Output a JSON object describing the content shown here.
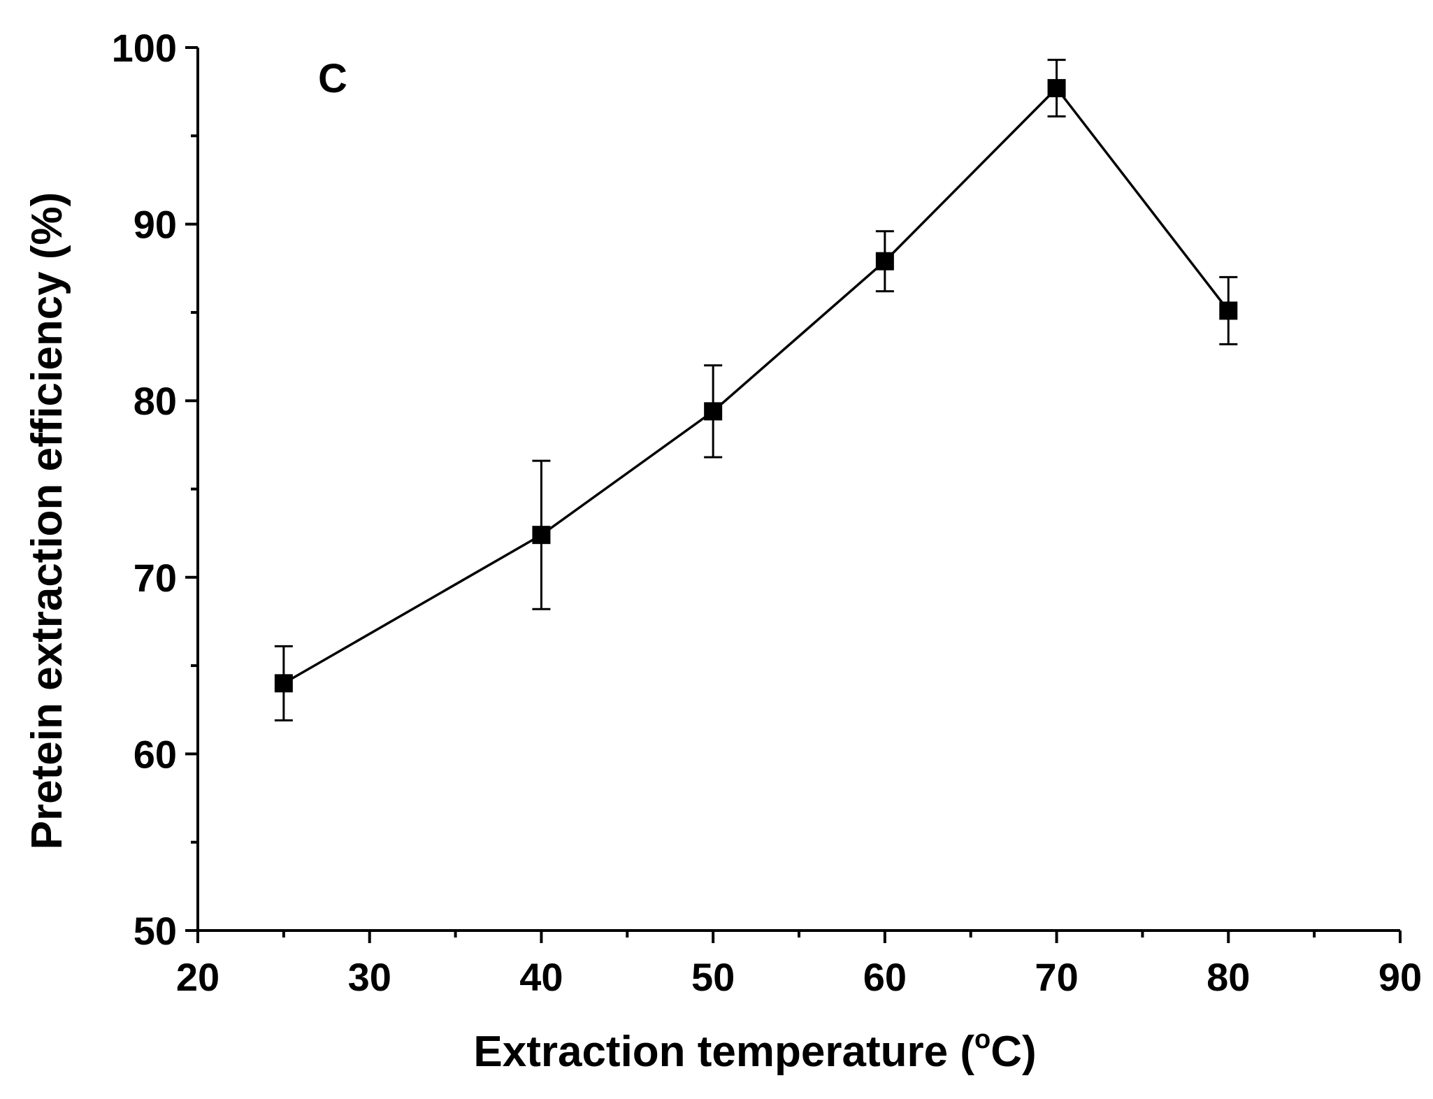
{
  "chart_data": {
    "type": "line",
    "title": "",
    "panel_label": "C",
    "xlabel": "Extraction temperature (",
    "xlabel_unit_superscript": "o",
    "xlabel_unit_suffix": "C)",
    "ylabel": "Pretein extraction efficiency (%)",
    "xlim": [
      20,
      90
    ],
    "ylim": [
      50,
      100
    ],
    "x_ticks": [
      20,
      30,
      40,
      50,
      60,
      70,
      80,
      90
    ],
    "x_tick_labels": [
      "20",
      "30",
      "40",
      "50",
      "60",
      "70",
      "80",
      "90"
    ],
    "y_ticks": [
      50,
      60,
      70,
      80,
      90,
      100
    ],
    "y_tick_labels": [
      "50",
      "60",
      "70",
      "80",
      "90",
      "100"
    ],
    "x_minor_step": 5,
    "y_minor_step": 5,
    "grid": false,
    "legend": "none",
    "series": [
      {
        "name": "Protein extraction efficiency",
        "marker": "square",
        "color": "#000000",
        "x": [
          25,
          40,
          50,
          60,
          70,
          80
        ],
        "y": [
          64.0,
          72.4,
          79.4,
          87.9,
          97.7,
          85.1
        ],
        "error": [
          2.1,
          4.2,
          2.6,
          1.7,
          1.6,
          1.9
        ]
      }
    ]
  }
}
